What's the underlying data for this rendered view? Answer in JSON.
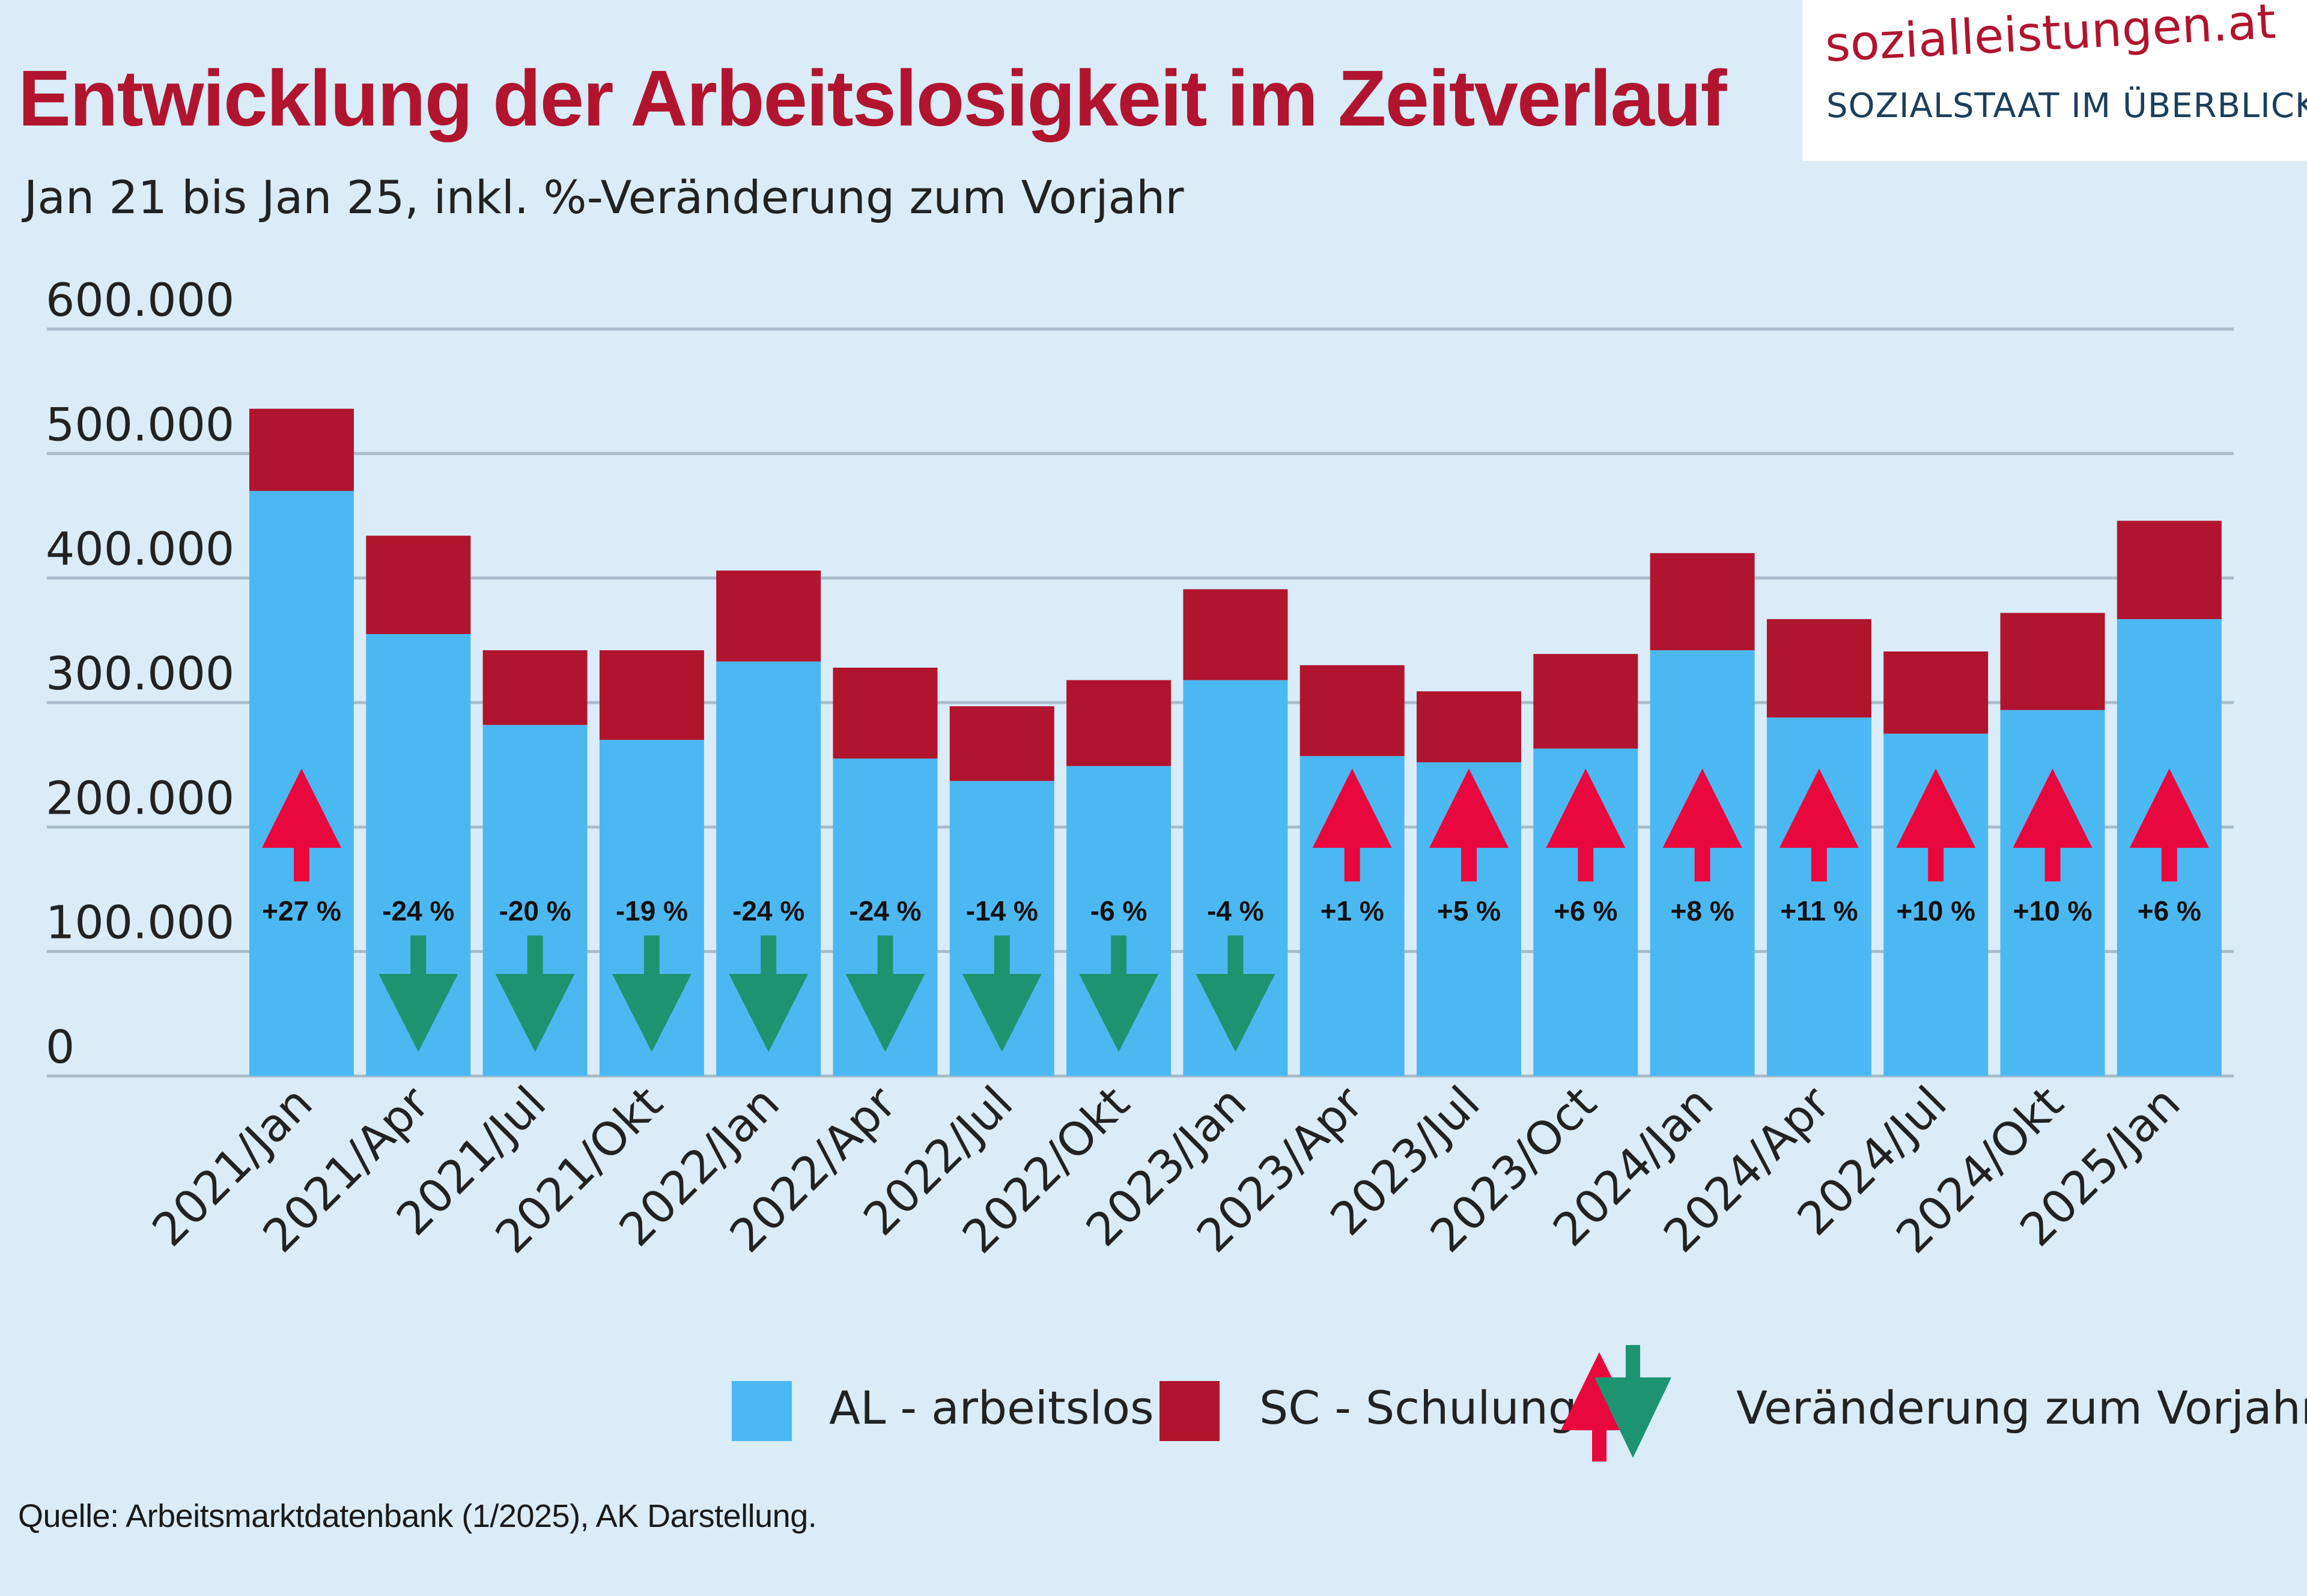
{
  "header": {
    "title": "Entwicklung der Arbeitslosigkeit im Zeitverlauf",
    "subtitle": "Jan 21 bis Jan 25, inkl. %-Veränderung zum Vorjahr"
  },
  "logo": {
    "url": "sozialleistungen.at",
    "tagline": "SOZIALSTAAT IM ÜBERBLICK"
  },
  "legend": {
    "al_label": "AL - arbeitslos",
    "sc_label": "SC - Schulung",
    "change_label": "Veränderung zum Vorjahr"
  },
  "source": "Quelle: Arbeitsmarktdatenbank (1/2025), AK Darstellung.",
  "colors": {
    "al": "#4cb8f2",
    "sc": "#b1142e",
    "up": "#e8083e",
    "down": "#1d9470",
    "grid": "#a9bccb",
    "title": "#b1142e"
  },
  "chart_data": {
    "type": "bar",
    "stacked": true,
    "title": "Entwicklung der Arbeitslosigkeit im Zeitverlauf",
    "ylim": [
      0,
      600000
    ],
    "yticks": [
      0,
      100000,
      200000,
      300000,
      400000,
      500000,
      600000
    ],
    "ytick_labels": [
      "0",
      "100.000",
      "200.000",
      "300.000",
      "400.000",
      "500.000",
      "600.000"
    ],
    "grid": true,
    "categories": [
      "2021/Jan",
      "2021/Apr",
      "2021/Jul",
      "2021/Okt",
      "2022/Jan",
      "2022/Apr",
      "2022/Jul",
      "2022/Okt",
      "2023/Jan",
      "2023/Apr",
      "2023/Jul",
      "2023/Oct",
      "2024/Jan",
      "2024/Apr",
      "2024/Jul",
      "2024/Okt",
      "2025/Jan"
    ],
    "series": [
      {
        "name": "AL - arbeitslos",
        "values": [
          470000,
          355000,
          282000,
          270000,
          333000,
          255000,
          237000,
          249000,
          318000,
          257000,
          252000,
          263000,
          342000,
          288000,
          275000,
          294000,
          367000
        ]
      },
      {
        "name": "SC - Schulung",
        "values": [
          66000,
          79000,
          60000,
          72000,
          73000,
          73000,
          60000,
          69000,
          73000,
          73000,
          57000,
          76000,
          78000,
          79000,
          66000,
          78000,
          79000
        ]
      }
    ],
    "changes": [
      "+27 %",
      "-24 %",
      "-20 %",
      "-19 %",
      "-24 %",
      "-24 %",
      "-14 %",
      "-6 %",
      "-4 %",
      "+1 %",
      "+5 %",
      "+6 %",
      "+8 %",
      "+11 %",
      "+10 %",
      "+10 %",
      "+6 %"
    ],
    "directions": [
      "up",
      "down",
      "down",
      "down",
      "down",
      "down",
      "down",
      "down",
      "down",
      "up",
      "up",
      "up",
      "up",
      "up",
      "up",
      "up",
      "up"
    ]
  }
}
